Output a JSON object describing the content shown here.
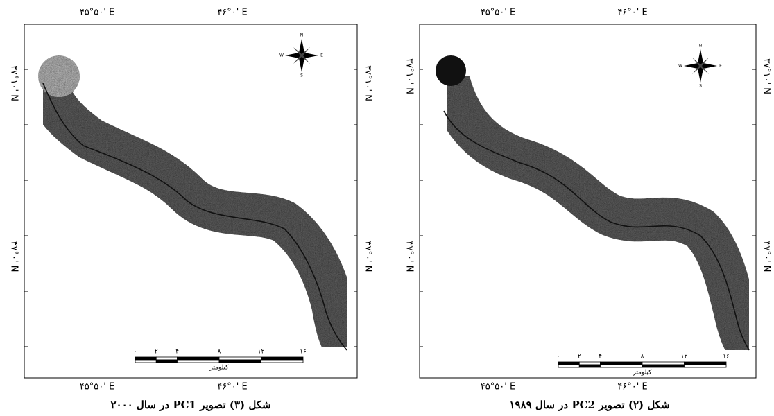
{
  "panels": [
    {
      "caption": "شکل (۳) تصویر PC1 در سال ۲۰۰۰",
      "top_labels": [
        "۴۵°۵۰' E",
        "۴۶°۰' E"
      ],
      "bottom_labels": [
        "۴۵°۵۰' E",
        "۴۶°۰' E"
      ],
      "left_labels": [
        "۳۷°۱۰' N",
        "۳۷°۰' N"
      ],
      "right_labels": [
        "۳۷°۱۰' N",
        "۳۷°۰' N"
      ],
      "scale_ticks": [
        "۰",
        "۲",
        "۴",
        "۸",
        "۱۲",
        "۱۶"
      ],
      "scale_unit": "کیلومتر",
      "compass": [
        "N",
        "S",
        "E",
        "W"
      ]
    },
    {
      "caption": "شکل (۲) تصویر PC2 در سال ۱۹۸۹",
      "top_labels": [
        "۴۵°۵۰' E",
        "۴۶°۰' E"
      ],
      "bottom_labels": [
        "۴۵°۵۰' E",
        "۴۶°۰' E"
      ],
      "left_labels": [
        "۳۷°۱۰' N",
        "۳۷°۰' N"
      ],
      "right_labels": [
        "۳۷°۱۰' N",
        "۳۷°۰' N"
      ],
      "scale_ticks": [
        "۰",
        "۲",
        "۴",
        "۸",
        "۱۲",
        "۱۶"
      ],
      "scale_unit": "کیلومتر",
      "compass": [
        "N",
        "S",
        "E",
        "W"
      ]
    }
  ]
}
